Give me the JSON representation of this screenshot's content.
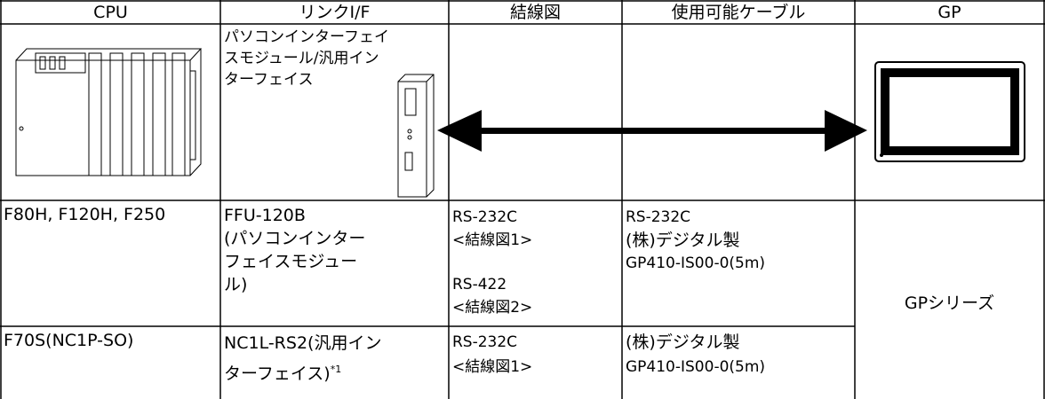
{
  "header": {
    "cells": [
      "CPU",
      "リンクI/F",
      "結線図",
      "使用可能ケーブル",
      "GP"
    ]
  },
  "image_row": {
    "link_lines": [
      "パソコンインターフェイ",
      "スモジュール/汎用イン",
      "ターフェイス"
    ]
  },
  "rows": [
    {
      "cpu": "F80H, F120H, F250",
      "link_lines": [
        "FFU-120B",
        "(パソコンインター",
        "フェイスモジュー",
        "ル)"
      ],
      "wiring_lines": [
        "RS-232C",
        "<結線図1>",
        "RS-422",
        "<結線図2>"
      ],
      "cable_lines": [
        "RS-232C",
        "(株)デジタル製",
        "GP410-IS00-0(5m)"
      ],
      "gp": "GPシリーズ"
    },
    {
      "cpu": "F70S(NC1P-SO)",
      "link_lines": [
        "NC1L-RS2(汎用イン",
        "ターフェイス)"
      ],
      "link_note": "*1",
      "wiring_lines": [
        "RS-232C",
        "<結線図1>"
      ],
      "cable_lines": [
        "(株)デジタル製",
        "GP410-IS00-0(5m)"
      ]
    }
  ]
}
